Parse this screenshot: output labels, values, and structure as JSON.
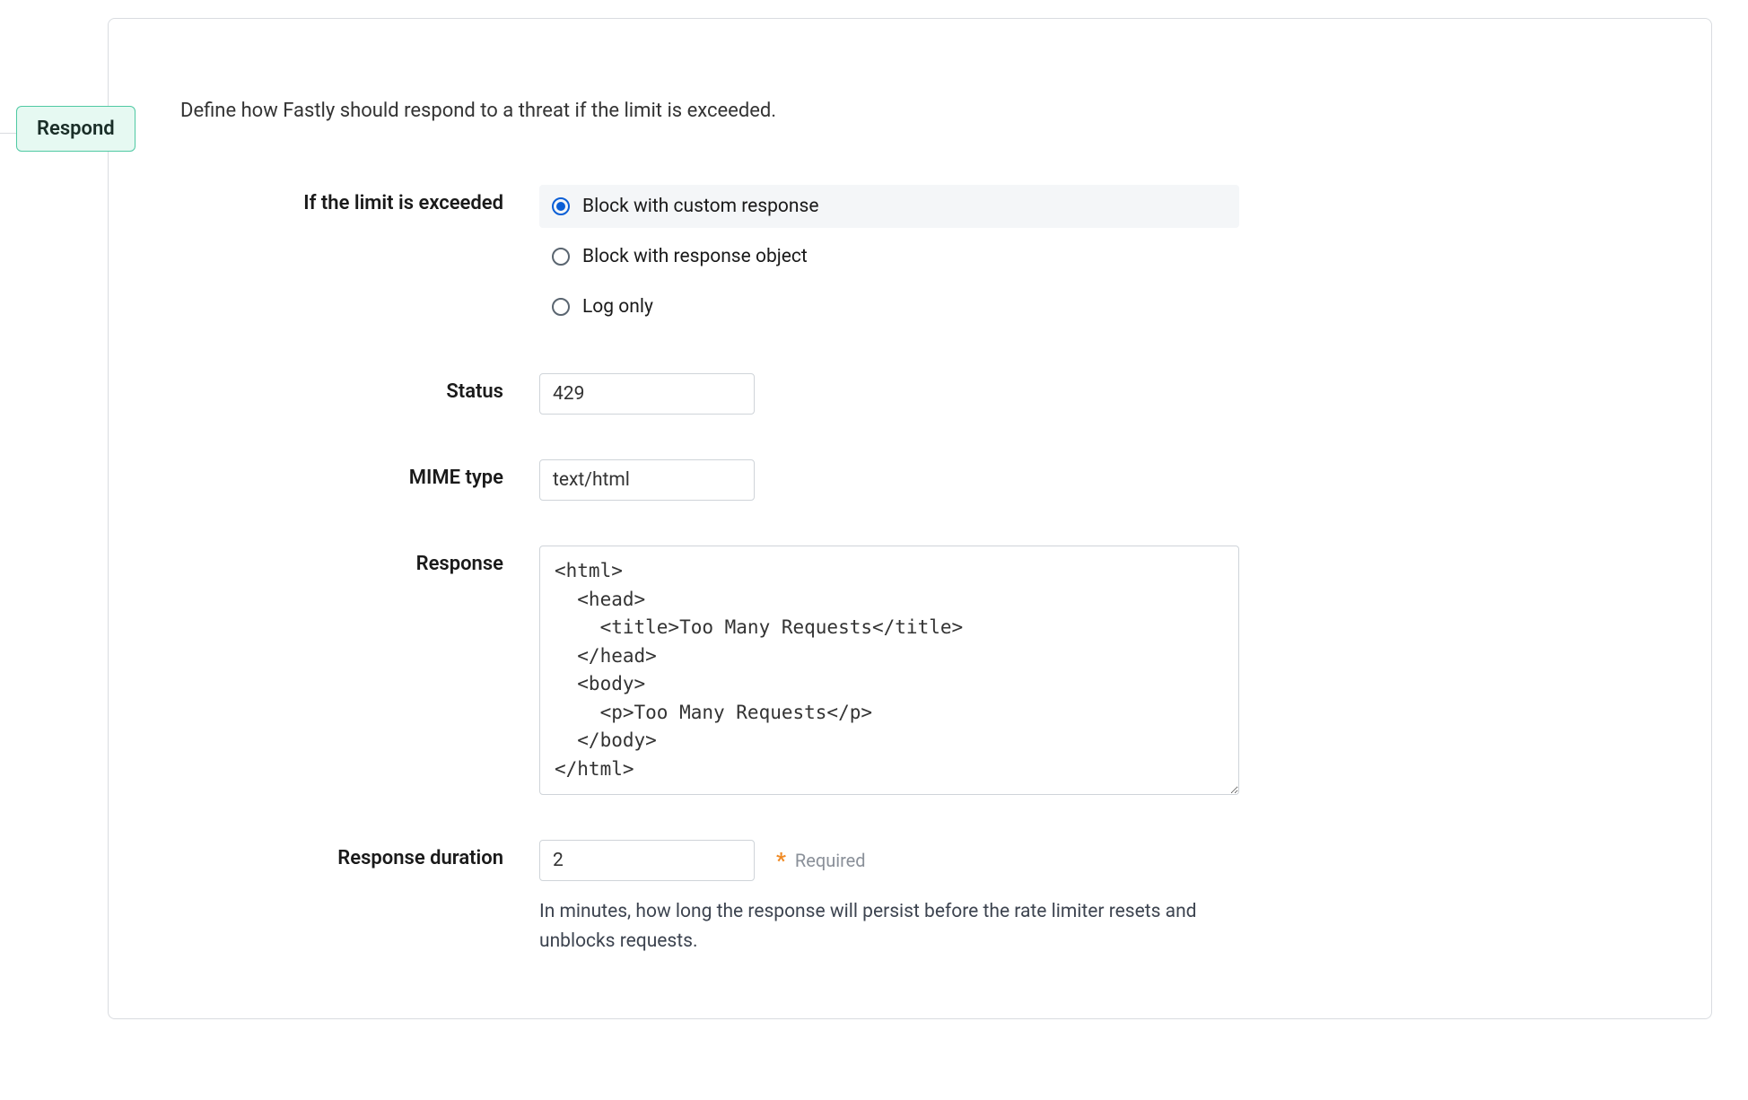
{
  "badge": {
    "label": "Respond"
  },
  "description": "Define how Fastly should respond to a threat if the limit is exceeded.",
  "fields": {
    "limit_exceeded": {
      "label": "If the limit is exceeded",
      "options": [
        {
          "label": "Block with custom response",
          "selected": true
        },
        {
          "label": "Block with response object",
          "selected": false
        },
        {
          "label": "Log only",
          "selected": false
        }
      ]
    },
    "status": {
      "label": "Status",
      "value": "429"
    },
    "mime_type": {
      "label": "MIME type",
      "value": "text/html"
    },
    "response": {
      "label": "Response",
      "value": "<html>\n  <head>\n    <title>Too Many Requests</title>\n  </head>\n  <body>\n    <p>Too Many Requests</p>\n  </body>\n</html>"
    },
    "response_duration": {
      "label": "Response duration",
      "value": "2",
      "required_label": "Required",
      "help": "In minutes, how long the response will persist before the rate limiter resets and unblocks requests."
    }
  },
  "colors": {
    "badge_bg": "#e6f9f2",
    "badge_border": "#4fc9a3",
    "panel_border": "#d9dce0",
    "radio_selected_bg": "#f4f6f8",
    "radio_accent": "#0b5fd6",
    "input_border": "#cfd4d9",
    "asterisk": "#f08a24",
    "muted_text": "#8a9099"
  }
}
